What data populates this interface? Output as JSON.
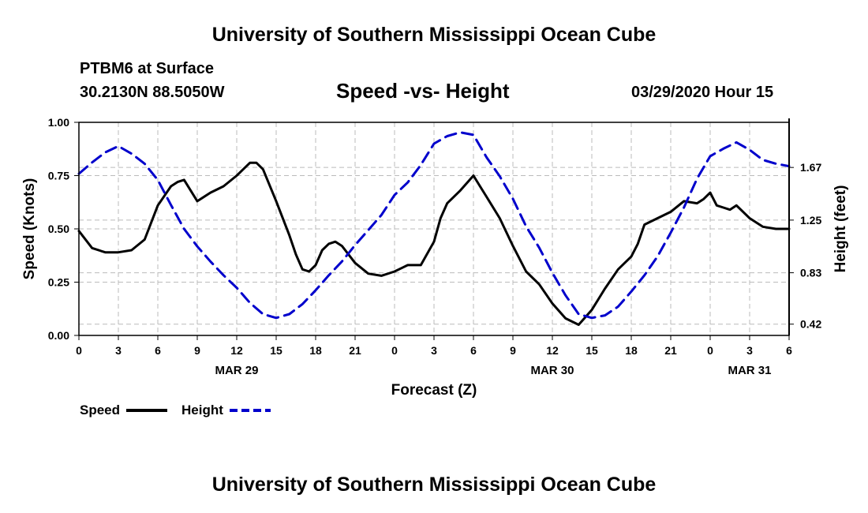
{
  "page": {
    "title_top": "University of Southern Mississippi Ocean Cube",
    "title_bottom": "University of Southern Mississippi Ocean Cube",
    "station_name": "PTBM6 at Surface",
    "station_coords": "30.2130N 88.5050W",
    "chart_title": "Speed -vs- Height",
    "timestamp": "03/29/2020 Hour 15"
  },
  "colors": {
    "speed": "#000000",
    "height": "#0000cc",
    "grid": "#bbbbbb"
  },
  "chart_data": {
    "type": "line",
    "title": "Speed -vs- Height",
    "xlabel": "Forecast (Z)",
    "ylabel": "Speed (Knots)",
    "y2label": "Height (feet)",
    "x_range": [
      0,
      54
    ],
    "x_ticks": [
      0,
      3,
      6,
      9,
      12,
      15,
      18,
      21,
      24,
      27,
      30,
      33,
      36,
      39,
      42,
      45,
      48,
      51,
      54
    ],
    "x_tick_labels": [
      "0",
      "3",
      "6",
      "9",
      "12",
      "15",
      "18",
      "21",
      "0",
      "3",
      "6",
      "9",
      "12",
      "15",
      "18",
      "21",
      "0",
      "3",
      "6"
    ],
    "date_labels": [
      {
        "x": 12,
        "label": "MAR 29"
      },
      {
        "x": 36,
        "label": "MAR 30"
      },
      {
        "x": 51,
        "label": "MAR 31"
      }
    ],
    "y_range": [
      0,
      1
    ],
    "y_ticks": [
      0,
      0.25,
      0.5,
      0.75,
      1
    ],
    "y_tick_labels": [
      "0.00",
      "0.25",
      "0.50",
      "0.75",
      "1.00"
    ],
    "y2_range": [
      0.33,
      2.03
    ],
    "y2_ticks": [
      0.42,
      0.83,
      1.25,
      1.67
    ],
    "y2_tick_labels": [
      "0.42",
      "0.83",
      "1.25",
      "1.67"
    ],
    "grid": true,
    "legend_position": "bottom-left",
    "legend": [
      {
        "name": "Speed",
        "style": "solid"
      },
      {
        "name": "Height",
        "style": "dashed"
      }
    ],
    "series": [
      {
        "name": "Speed",
        "axis": "left",
        "x": [
          0,
          1,
          2,
          3,
          4,
          5,
          6,
          7,
          7.5,
          8,
          9,
          10,
          11,
          12,
          12.5,
          13,
          13.5,
          14,
          15,
          16,
          16.5,
          17,
          17.5,
          18,
          18.5,
          19,
          19.5,
          20,
          20.5,
          21,
          22,
          23,
          24,
          25,
          26,
          27,
          27.5,
          28,
          29,
          30,
          30.5,
          31,
          32,
          33,
          34,
          35,
          36,
          37,
          38,
          39,
          40,
          41,
          42,
          42.5,
          43,
          44,
          45,
          46,
          47,
          47.5,
          48,
          48.5,
          49,
          49.5,
          50,
          51,
          52,
          53,
          54
        ],
        "y": [
          0.49,
          0.41,
          0.39,
          0.39,
          0.4,
          0.45,
          0.61,
          0.7,
          0.72,
          0.73,
          0.63,
          0.67,
          0.7,
          0.75,
          0.78,
          0.81,
          0.81,
          0.78,
          0.63,
          0.47,
          0.38,
          0.31,
          0.3,
          0.33,
          0.4,
          0.43,
          0.44,
          0.42,
          0.38,
          0.34,
          0.29,
          0.28,
          0.3,
          0.33,
          0.33,
          0.44,
          0.55,
          0.62,
          0.68,
          0.75,
          0.7,
          0.65,
          0.55,
          0.42,
          0.3,
          0.24,
          0.15,
          0.08,
          0.05,
          0.12,
          0.22,
          0.31,
          0.37,
          0.43,
          0.52,
          0.55,
          0.58,
          0.63,
          0.62,
          0.64,
          0.67,
          0.61,
          0.6,
          0.59,
          0.61,
          0.55,
          0.51,
          0.5,
          0.5
        ]
      },
      {
        "name": "Height",
        "axis": "right",
        "x": [
          0,
          1,
          2,
          3,
          4,
          5,
          6,
          7,
          8,
          9,
          10,
          11,
          12,
          13,
          14,
          15,
          16,
          17,
          18,
          19,
          20,
          21,
          22,
          23,
          24,
          25,
          26,
          27,
          28,
          29,
          30,
          31,
          32,
          33,
          34,
          35,
          36,
          37,
          38,
          39,
          40,
          41,
          42,
          43,
          44,
          45,
          46,
          47,
          48,
          49,
          50,
          51,
          52,
          53,
          54
        ],
        "y": [
          1.62,
          1.71,
          1.79,
          1.84,
          1.78,
          1.7,
          1.57,
          1.37,
          1.18,
          1.04,
          0.92,
          0.81,
          0.71,
          0.59,
          0.5,
          0.47,
          0.5,
          0.58,
          0.69,
          0.81,
          0.92,
          1.05,
          1.17,
          1.29,
          1.45,
          1.55,
          1.69,
          1.86,
          1.92,
          1.95,
          1.93,
          1.75,
          1.6,
          1.42,
          1.2,
          1.03,
          0.83,
          0.65,
          0.5,
          0.47,
          0.49,
          0.56,
          0.68,
          0.81,
          0.96,
          1.15,
          1.35,
          1.58,
          1.76,
          1.82,
          1.87,
          1.81,
          1.73,
          1.7,
          1.68
        ]
      }
    ]
  }
}
